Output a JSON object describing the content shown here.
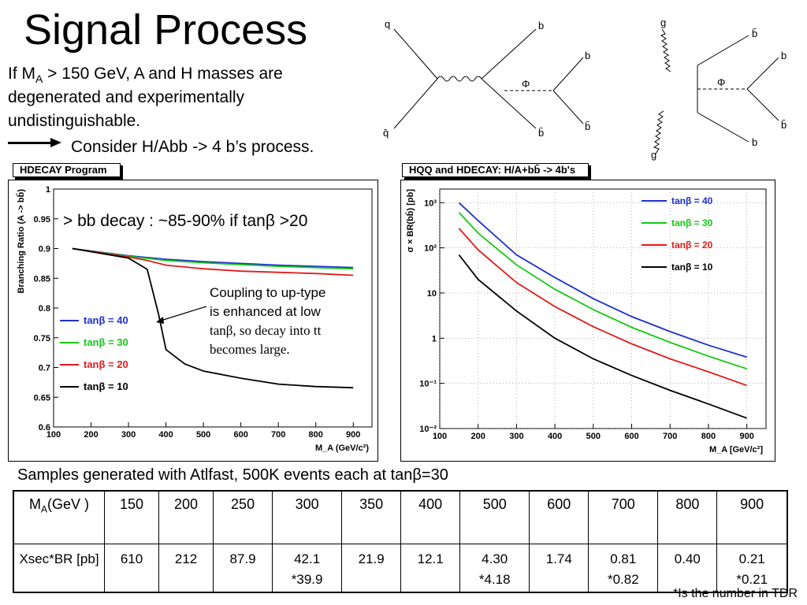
{
  "slide": {
    "title": "Signal Process",
    "intro_prefix": "If M",
    "intro_sub": "A",
    "intro_rest": " > 150 GeV, A and H masses are",
    "intro_line2": "degenerated and experimentally",
    "intro_line3": "undistinguishable.",
    "consider": "Consider H/Abb -> 4 b’s process.",
    "samples": "Samples generated with Atlfast, 500K events each at tanβ=30",
    "footnote": "*Is the number in TDR"
  },
  "feynman": {
    "left": {
      "in_top": "q",
      "in_bottom": "q̄",
      "out_top": "b",
      "out_bottom": "b̄",
      "mid": "Φ",
      "dec_top": "b",
      "dec_bottom": "b̄"
    },
    "right": {
      "in_top": "g",
      "in_bottom": "g",
      "out_top": "b̄",
      "out_bottom": "b",
      "mid": "Φ",
      "dec_top": "b",
      "dec_bottom": "b̄"
    }
  },
  "chart_labels": {
    "left_box": "HDECAY Program",
    "right_box": "HQQ and HDECAY: H/A+bb̄ -> 4b's",
    "left_note": "> bb decay : ~85-90% if tanβ >20",
    "coupling_line1": "Coupling to up-type",
    "coupling_line2": "is enhanced at low",
    "coupling_line3": "tanβ, so decay into tt",
    "coupling_line4": "becomes large."
  },
  "chart_data": [
    {
      "type": "line",
      "title": "",
      "xlabel": "M_A (GeV/c²)",
      "ylabel": "Branching Ratio (A -> bb̄)",
      "xlim": [
        100,
        950
      ],
      "ylim": [
        0.6,
        1.0
      ],
      "xticks": [
        100,
        200,
        300,
        400,
        500,
        600,
        700,
        800,
        900
      ],
      "yticks": [
        0.6,
        0.65,
        0.7,
        0.75,
        0.8,
        0.85,
        0.9,
        0.95,
        1
      ],
      "ytick_labels": [
        "0.6",
        "0.65",
        "0.7",
        "0.75",
        "0.8",
        "0.85",
        "0.9",
        "0.95",
        "1"
      ],
      "legend": "left",
      "series": [
        {
          "name": "tanβ = 40",
          "color": "#1f2fd0",
          "x": [
            150,
            300,
            400,
            500,
            600,
            700,
            800,
            900
          ],
          "y": [
            0.9,
            0.888,
            0.882,
            0.878,
            0.875,
            0.872,
            0.87,
            0.868
          ]
        },
        {
          "name": "tanβ = 30",
          "color": "#14c814",
          "x": [
            150,
            300,
            400,
            500,
            600,
            700,
            800,
            900
          ],
          "y": [
            0.9,
            0.887,
            0.88,
            0.876,
            0.873,
            0.87,
            0.868,
            0.866
          ]
        },
        {
          "name": "tanβ = 20",
          "color": "#e01b1b",
          "x": [
            150,
            300,
            350,
            400,
            500,
            600,
            700,
            800,
            900
          ],
          "y": [
            0.9,
            0.886,
            0.88,
            0.872,
            0.866,
            0.862,
            0.86,
            0.858,
            0.855
          ]
        },
        {
          "name": "tanβ = 10",
          "color": "#000000",
          "x": [
            150,
            300,
            350,
            380,
            400,
            450,
            500,
            600,
            700,
            800,
            900
          ],
          "y": [
            0.9,
            0.884,
            0.865,
            0.79,
            0.73,
            0.706,
            0.694,
            0.682,
            0.672,
            0.668,
            0.666
          ]
        }
      ]
    },
    {
      "type": "line",
      "title": "",
      "xlabel": "M_A [GeV/c²]",
      "ylabel": "σ × BR(bb̄) [pb]",
      "xlim": [
        100,
        950
      ],
      "ylim": [
        0.01,
        2000
      ],
      "yscale": "log",
      "xticks": [
        100,
        200,
        300,
        400,
        500,
        600,
        700,
        800,
        900
      ],
      "yticks": [
        0.01,
        0.1,
        1,
        10,
        100,
        1000
      ],
      "ytick_labels": [
        "10⁻²",
        "10⁻¹",
        "1",
        "10",
        "10²",
        "10³"
      ],
      "legend": "top-right",
      "series": [
        {
          "name": "tanβ = 40",
          "color": "#1f2fd0",
          "x": [
            150,
            200,
            300,
            400,
            500,
            600,
            700,
            800,
            900
          ],
          "y": [
            1000,
            400,
            70,
            22,
            7.5,
            3,
            1.4,
            0.7,
            0.38
          ]
        },
        {
          "name": "tanβ = 30",
          "color": "#14c814",
          "x": [
            150,
            200,
            300,
            400,
            500,
            600,
            700,
            800,
            900
          ],
          "y": [
            610,
            212,
            42.1,
            12.1,
            4.3,
            1.74,
            0.81,
            0.4,
            0.21
          ]
        },
        {
          "name": "tanβ = 20",
          "color": "#e01b1b",
          "x": [
            150,
            200,
            300,
            400,
            500,
            600,
            700,
            800,
            900
          ],
          "y": [
            270,
            90,
            17,
            5,
            1.8,
            0.75,
            0.35,
            0.18,
            0.09
          ]
        },
        {
          "name": "tanβ = 10",
          "color": "#000000",
          "x": [
            150,
            200,
            300,
            400,
            500,
            600,
            700,
            800,
            900
          ],
          "y": [
            70,
            20,
            4,
            1,
            0.35,
            0.15,
            0.07,
            0.035,
            0.017
          ]
        }
      ]
    }
  ],
  "table": {
    "row_header_1": "M",
    "row_header_1_sub": "A",
    "row_header_1_rest": "(GeV )",
    "row_header_2": "Xsec*BR [pb]",
    "masses": [
      "150",
      "200",
      "250",
      "300",
      "350",
      "400",
      "500",
      "600",
      "700",
      "800",
      "900"
    ],
    "xsec": [
      "610",
      "212",
      "87.9",
      "42.1",
      "21.9",
      "12.1",
      "4.30",
      "1.74",
      "0.81",
      "0.40",
      "0.21"
    ],
    "xsec_tdr": [
      "",
      "",
      "",
      "*39.9",
      "",
      "",
      "*4.18",
      "",
      "*0.82",
      "",
      "*0.21"
    ]
  }
}
